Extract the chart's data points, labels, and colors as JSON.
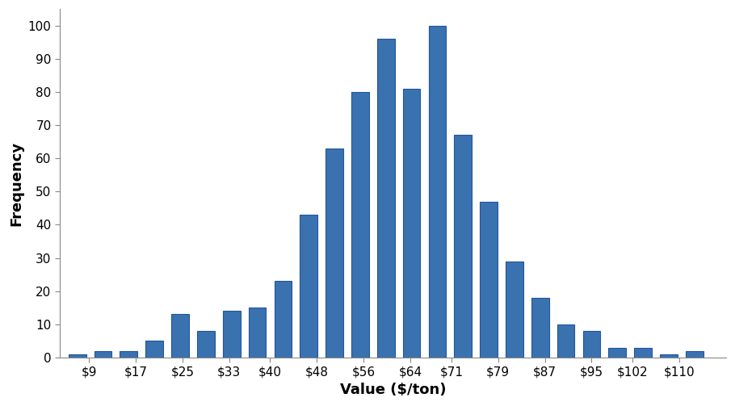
{
  "bar_heights": [
    1,
    2,
    2,
    5,
    13,
    8,
    14,
    15,
    23,
    43,
    63,
    80,
    96,
    81,
    100,
    67,
    47,
    29,
    18,
    10,
    8,
    3,
    3,
    1,
    2
  ],
  "tick_positions": [
    9,
    17,
    25,
    33,
    40,
    48,
    56,
    64,
    71,
    79,
    87,
    95,
    102,
    110
  ],
  "tick_labels": [
    "$9",
    "$17",
    "$25",
    "$33",
    "$40",
    "$48",
    "$56",
    "$64",
    "$71",
    "$79",
    "$87",
    "$95",
    "$102",
    "$110"
  ],
  "xlabel": "Value ($/ton)",
  "ylabel": "Frequency",
  "ylim": [
    0,
    105
  ],
  "yticks": [
    0,
    10,
    20,
    30,
    40,
    50,
    60,
    70,
    80,
    90,
    100
  ],
  "bar_color": "#3A72B0",
  "bar_edge_color": "#2155A0",
  "background_color": "#ffffff",
  "tick_label_fontsize": 11,
  "axis_label_fontsize": 13,
  "xlim": [
    4,
    118
  ]
}
